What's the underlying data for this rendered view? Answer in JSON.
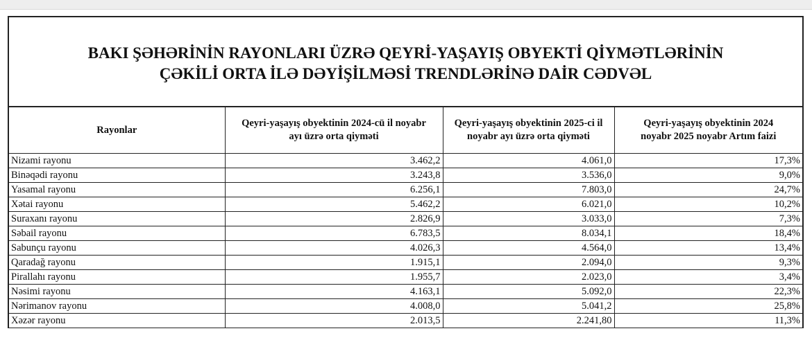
{
  "title": {
    "line1": "BAKI ŞƏHƏRİNİN RAYONLARI ÜZRƏ QEYRİ-YAŞAYIŞ OBYEKTİ QİYMƏTLƏRİNİN",
    "line2": "ÇƏKİLİ ORTA İLƏ  DƏYİŞİLMƏSİ TRENDLƏRİNƏ DAİR CƏDVƏL"
  },
  "headers": [
    "Rayonlar",
    "Qeyri-yaşayış obyektinin 2024-cü il noyabr ayı üzrə orta qiyməti",
    "Qeyri-yaşayış obyektinin 2025-ci il noyabr ayı üzrə orta qiyməti",
    "Qeyri-yaşayış obyektinin 2024 noyabr 2025 noyabr Artım faizi"
  ],
  "rows": [
    [
      "Nizami rayonu",
      "3.462,2",
      "4.061,0",
      "17,3%"
    ],
    [
      "Binəqədi rayonu",
      "3.243,8",
      "3.536,0",
      "9,0%"
    ],
    [
      "Yasamal rayonu",
      "6.256,1",
      "7.803,0",
      "24,7%"
    ],
    [
      "Xətai rayonu",
      "5.462,2",
      "6.021,0",
      "10,2%"
    ],
    [
      "Suraxanı rayonu",
      "2.826,9",
      "3.033,0",
      "7,3%"
    ],
    [
      "Səbail rayonu",
      "6.783,5",
      "8.034,1",
      "18,4%"
    ],
    [
      "Sabunçu rayonu",
      "4.026,3",
      "4.564,0",
      "13,4%"
    ],
    [
      "Qaradağ rayonu",
      "1.915,1",
      "2.094,0",
      "9,3%"
    ],
    [
      "Pirallahı rayonu",
      "1.955,7",
      "2.023,0",
      "3,4%"
    ],
    [
      "Nəsimi rayonu",
      "4.163,1",
      "5.092,0",
      "22,3%"
    ],
    [
      "Nərimanov rayonu",
      "4.008,0",
      "5.041,2",
      "25,8%"
    ],
    [
      "Xəzər rayonu",
      "2.013,5",
      "2.241,80",
      "11,3%"
    ]
  ]
}
